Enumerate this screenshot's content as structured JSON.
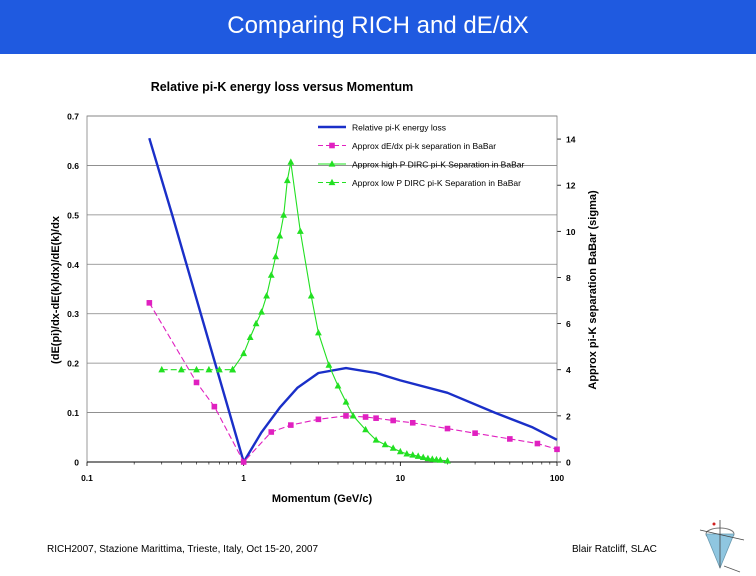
{
  "slide": {
    "title": "Comparing RICH and dE/dX",
    "footer_left": "RICH2007, Stazione Marittima, Trieste, Italy, Oct 15-20, 2007",
    "footer_right": "Blair Ratcliff, SLAC",
    "logo_icon": "slac-detector-logo-icon",
    "title_bar_color": "#1f5ae0"
  },
  "chart_data": {
    "type": "line",
    "title": "Relative pi-K energy loss versus Momentum",
    "xlabel": "Momentum (GeV/c)",
    "ylabel_left": "(dE(pi)/dx-dE(k)/dx)/dE(k)/dx",
    "ylabel_right": "Approx pi-K separation BaBar (sigma)",
    "x_scale": "log",
    "xlim": [
      0.1,
      100
    ],
    "x_ticks": [
      "0.1",
      "1",
      "10",
      "100"
    ],
    "ylim_left": [
      0,
      0.7
    ],
    "y_ticks_left": [
      "0",
      "0.1",
      "0.2",
      "0.3",
      "0.4",
      "0.5",
      "0.6",
      "0.7"
    ],
    "ylim_right": [
      0,
      15
    ],
    "y_ticks_right": [
      "0",
      "2",
      "4",
      "6",
      "8",
      "10",
      "12",
      "14"
    ],
    "grid": "horizontal",
    "legend_position": "top-right",
    "series": [
      {
        "name": "Relative pi-K energy loss",
        "axis": "left",
        "color": "#1a2fc8",
        "marker": "none",
        "dash": "solid",
        "points": [
          [
            0.25,
            0.655
          ],
          [
            0.35,
            0.5
          ],
          [
            0.5,
            0.33
          ],
          [
            0.7,
            0.17
          ],
          [
            1.0,
            0.0
          ],
          [
            1.3,
            0.06
          ],
          [
            1.7,
            0.11
          ],
          [
            2.2,
            0.15
          ],
          [
            3.0,
            0.18
          ],
          [
            4.5,
            0.19
          ],
          [
            7,
            0.18
          ],
          [
            10,
            0.165
          ],
          [
            20,
            0.14
          ],
          [
            40,
            0.1
          ],
          [
            70,
            0.07
          ],
          [
            100,
            0.045
          ]
        ]
      },
      {
        "name": "Approx dE/dx pi-k separation in BaBar",
        "axis": "right",
        "color": "#e020c0",
        "marker": "square",
        "dash": "dashed",
        "points": [
          [
            0.25,
            6.9
          ],
          [
            0.5,
            3.45
          ],
          [
            0.65,
            2.4
          ],
          [
            1.0,
            0.0
          ],
          [
            1.5,
            1.3
          ],
          [
            2.0,
            1.6
          ],
          [
            3.0,
            1.85
          ],
          [
            4.5,
            2.0
          ],
          [
            6.0,
            1.95
          ],
          [
            7.0,
            1.9
          ],
          [
            9.0,
            1.8
          ],
          [
            12.0,
            1.7
          ],
          [
            20.0,
            1.45
          ],
          [
            30.0,
            1.25
          ],
          [
            50.0,
            1.0
          ],
          [
            75.0,
            0.8
          ],
          [
            100.0,
            0.55
          ]
        ]
      },
      {
        "name": "Approx high P DIRC pi-K Separation in BaBar",
        "axis": "right",
        "color": "#22e022",
        "marker": "triangle",
        "dash": "solid",
        "points": [
          [
            0.85,
            4.0
          ],
          [
            1.0,
            4.7
          ],
          [
            1.1,
            5.4
          ],
          [
            1.2,
            6.0
          ],
          [
            1.3,
            6.5
          ],
          [
            1.4,
            7.2
          ],
          [
            1.5,
            8.1
          ],
          [
            1.6,
            8.9
          ],
          [
            1.7,
            9.8
          ],
          [
            1.8,
            10.7
          ],
          [
            1.9,
            12.2
          ],
          [
            2.0,
            13.0
          ],
          [
            2.3,
            10.0
          ],
          [
            2.7,
            7.2
          ],
          [
            3.0,
            5.6
          ],
          [
            3.5,
            4.2
          ],
          [
            4.0,
            3.3
          ],
          [
            4.5,
            2.6
          ],
          [
            5.0,
            2.0
          ],
          [
            6.0,
            1.4
          ],
          [
            7.0,
            0.95
          ],
          [
            8.0,
            0.75
          ],
          [
            9.0,
            0.6
          ],
          [
            10.0,
            0.45
          ],
          [
            11.0,
            0.35
          ],
          [
            12.0,
            0.3
          ],
          [
            13.0,
            0.25
          ],
          [
            14.0,
            0.2
          ],
          [
            15.0,
            0.15
          ],
          [
            16.0,
            0.12
          ],
          [
            17.0,
            0.1
          ],
          [
            18.0,
            0.08
          ],
          [
            20.0,
            0.05
          ]
        ]
      },
      {
        "name": "Approx low P DIRC pi-K Separation in BaBar",
        "axis": "right",
        "color": "#22e022",
        "marker": "triangle",
        "dash": "dashed",
        "points": [
          [
            0.3,
            4.0
          ],
          [
            0.4,
            4.0
          ],
          [
            0.5,
            4.0
          ],
          [
            0.6,
            4.0
          ],
          [
            0.7,
            4.0
          ],
          [
            0.85,
            4.0
          ]
        ]
      }
    ]
  }
}
